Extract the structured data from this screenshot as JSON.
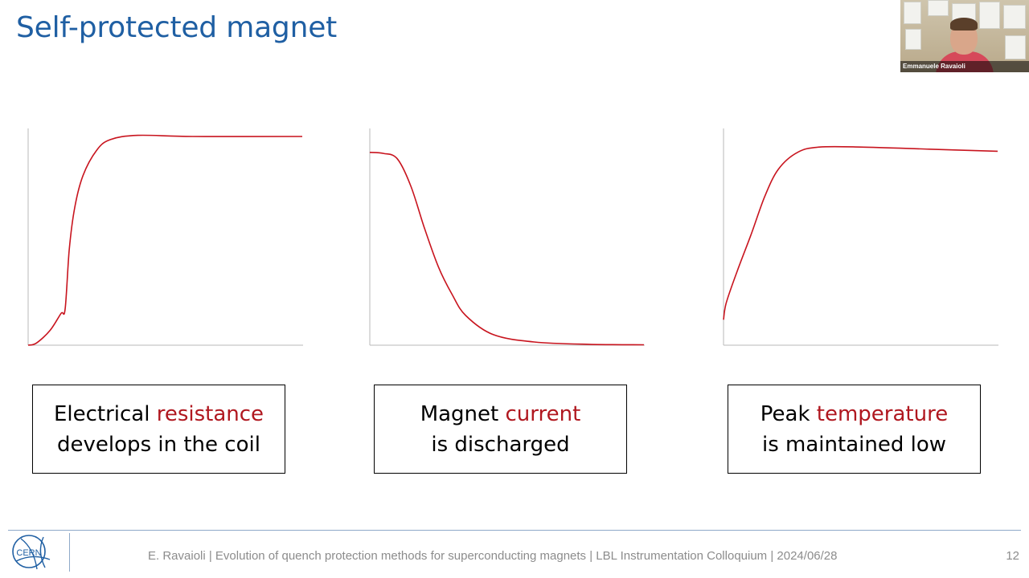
{
  "slide": {
    "title": "Self-protected magnet",
    "page_number": "12"
  },
  "webcam": {
    "participant_name": "Emmanuele Ravaioli"
  },
  "captions": [
    {
      "line1_prefix": "Electrical ",
      "line1_highlight": "resistance",
      "line2": "develops in the coil"
    },
    {
      "line1_prefix": "Magnet ",
      "line1_highlight": "current",
      "line2": "is discharged"
    },
    {
      "line1_prefix": "Peak ",
      "line1_highlight": "temperature",
      "line2": "is maintained low"
    }
  ],
  "footer": {
    "text": "E. Ravaioli | Evolution of quench protection methods for superconducting magnets | LBL Instrumentation Colloquium | 2024/06/28",
    "logo_text": "CERN"
  },
  "colors": {
    "title": "#1f5fa3",
    "curve": "#c8141e",
    "highlight": "#b0171f",
    "axis": "#b8b8b8"
  },
  "chart_data": [
    {
      "type": "line",
      "series": [
        {
          "points": [
            [
              0,
              0
            ],
            [
              0.03,
              0.01
            ],
            [
              0.08,
              0.07
            ],
            [
              0.12,
              0.15
            ],
            [
              0.135,
              0.17
            ],
            [
              0.15,
              0.45
            ],
            [
              0.17,
              0.65
            ],
            [
              0.2,
              0.8
            ],
            [
              0.25,
              0.92
            ],
            [
              0.3,
              0.97
            ],
            [
              0.4,
              0.99
            ],
            [
              0.6,
              0.985
            ],
            [
              1,
              0.985
            ]
          ]
        }
      ],
      "xlim": [
        0,
        1
      ],
      "ylim": [
        0,
        1
      ],
      "grid": false
    },
    {
      "type": "line",
      "series": [
        {
          "points": [
            [
              0,
              0.91
            ],
            [
              0.05,
              0.905
            ],
            [
              0.1,
              0.88
            ],
            [
              0.15,
              0.75
            ],
            [
              0.2,
              0.55
            ],
            [
              0.25,
              0.37
            ],
            [
              0.3,
              0.24
            ],
            [
              0.35,
              0.14
            ],
            [
              0.45,
              0.05
            ],
            [
              0.6,
              0.015
            ],
            [
              0.8,
              0.004
            ],
            [
              1,
              0.002
            ]
          ]
        }
      ],
      "xlim": [
        0,
        1
      ],
      "ylim": [
        0,
        1
      ],
      "grid": false
    },
    {
      "type": "line",
      "series": [
        {
          "points": [
            [
              0,
              0.12
            ],
            [
              0.01,
              0.2
            ],
            [
              0.05,
              0.35
            ],
            [
              0.1,
              0.52
            ],
            [
              0.15,
              0.7
            ],
            [
              0.2,
              0.83
            ],
            [
              0.27,
              0.91
            ],
            [
              0.35,
              0.935
            ],
            [
              0.5,
              0.935
            ],
            [
              0.75,
              0.925
            ],
            [
              1,
              0.915
            ]
          ]
        }
      ],
      "xlim": [
        0,
        1
      ],
      "ylim": [
        0,
        1
      ],
      "grid": false
    }
  ]
}
